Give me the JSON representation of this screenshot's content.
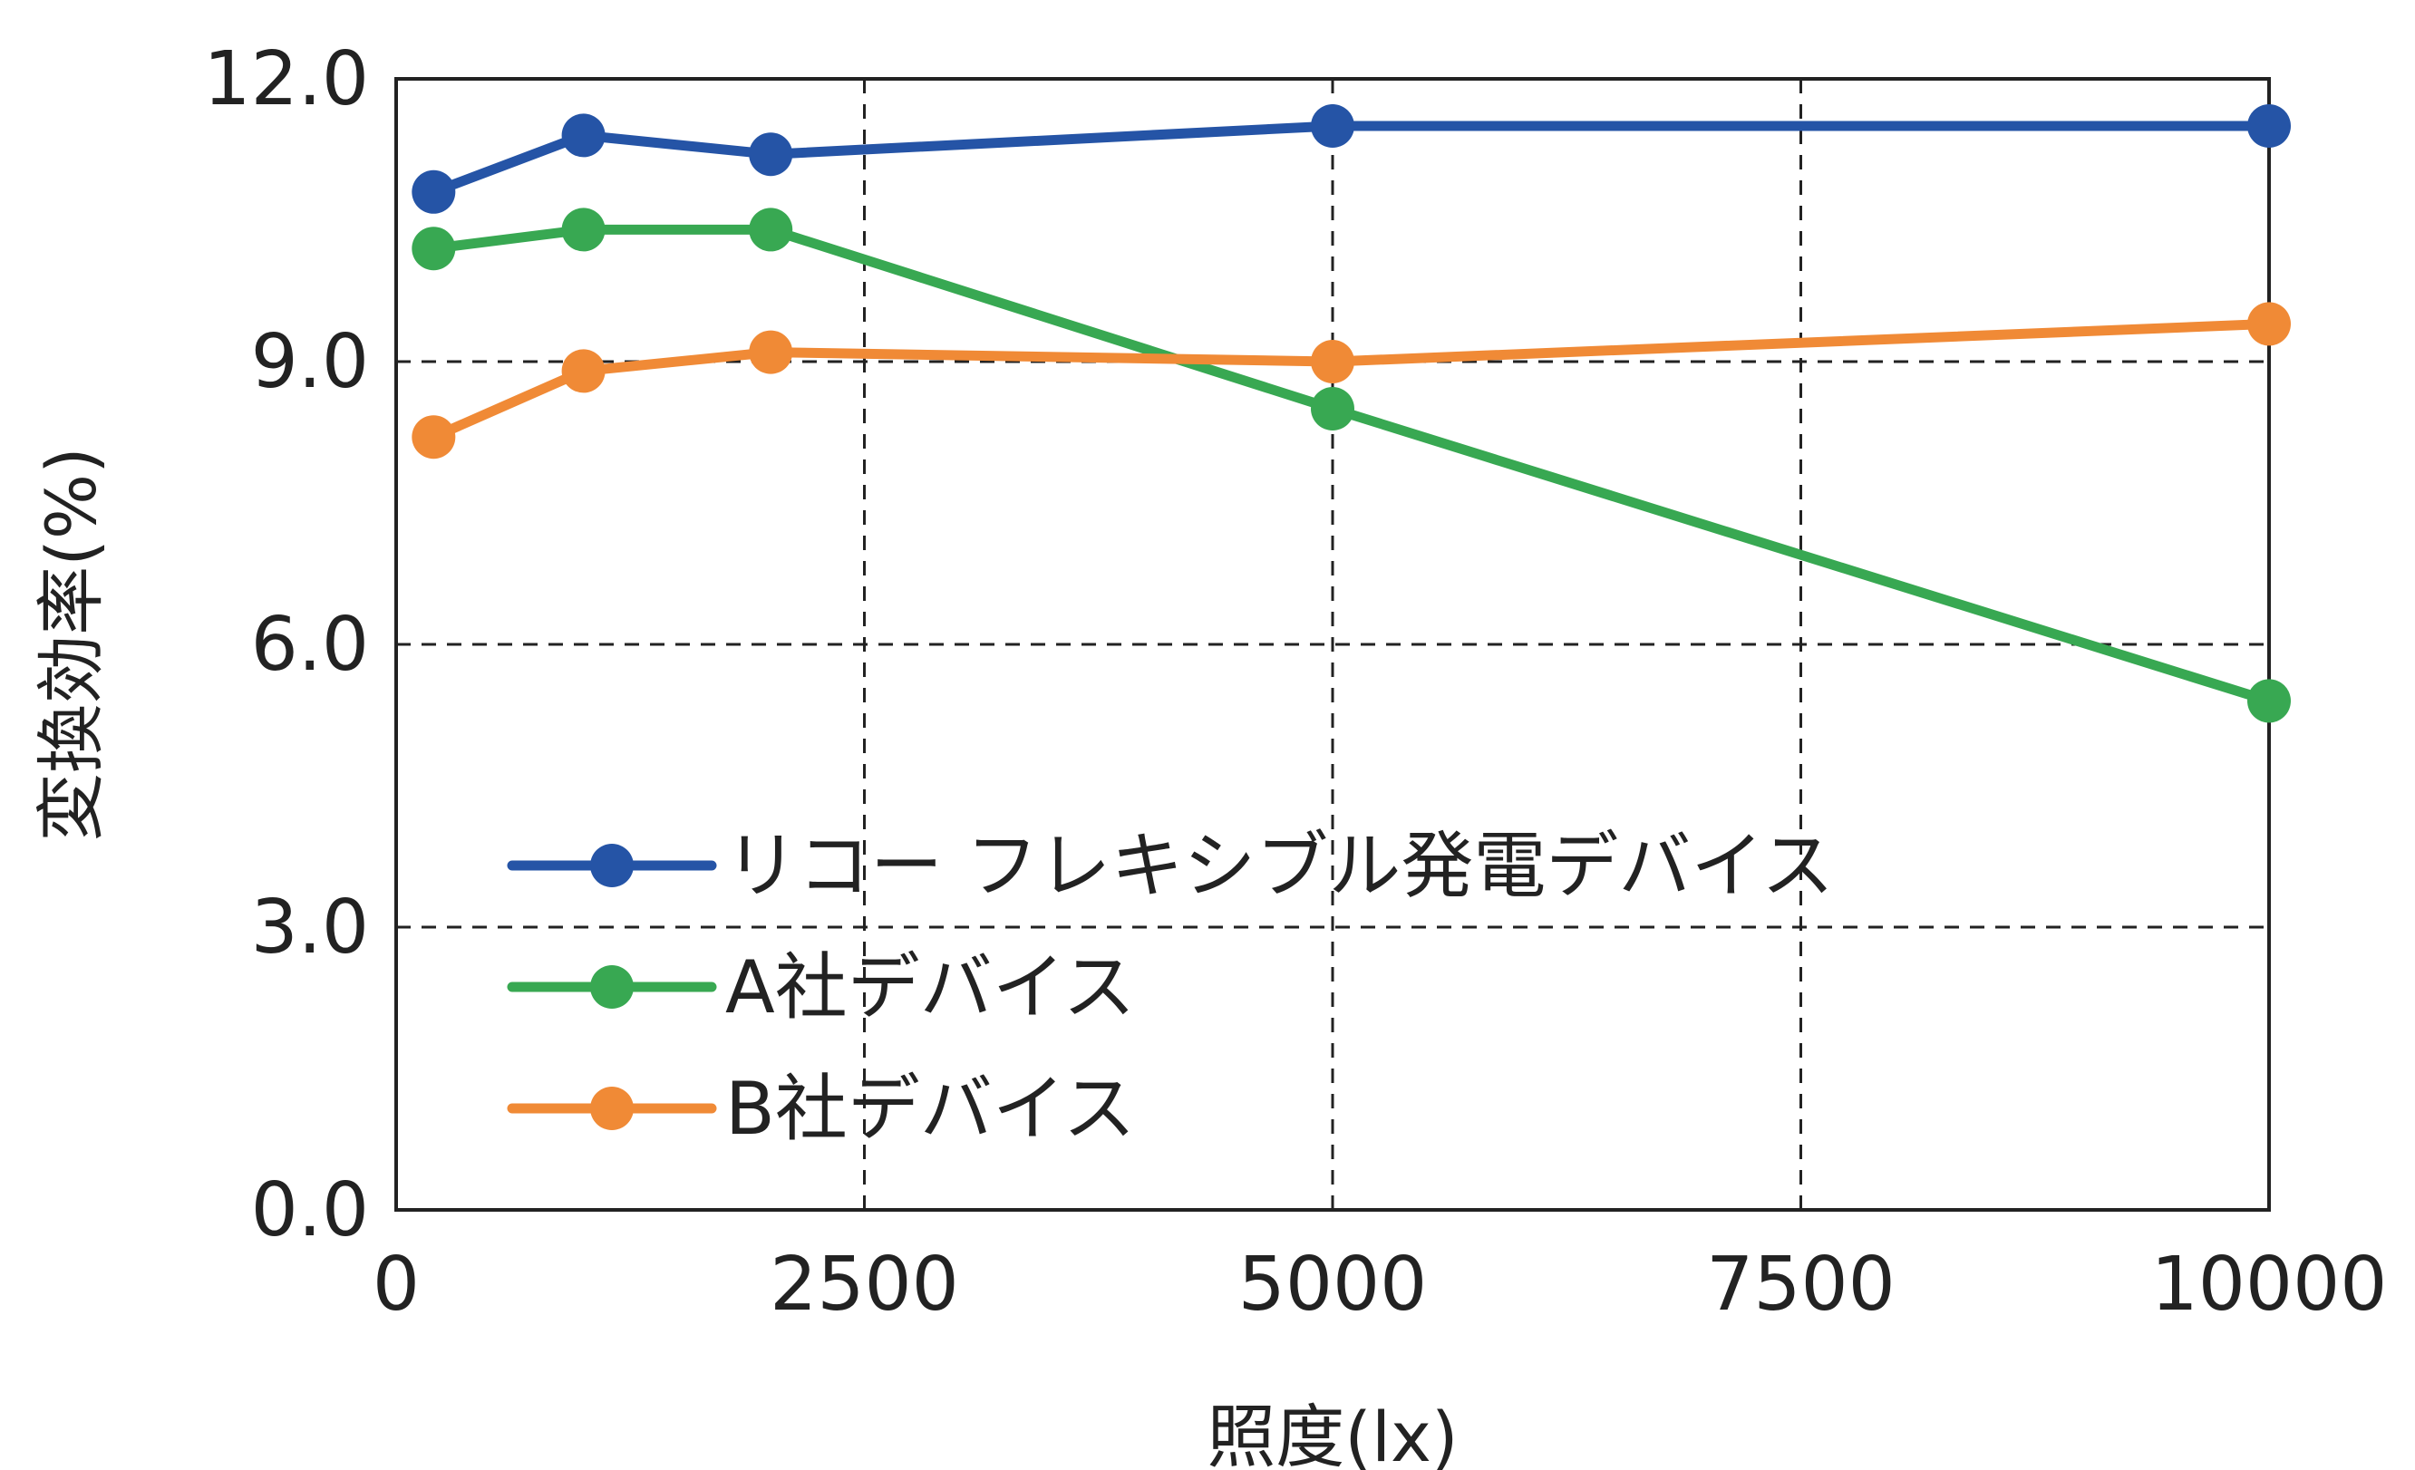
{
  "chart_data": {
    "type": "line",
    "xlabel": "照度(lx)",
    "ylabel": "変換効率(%)",
    "xlim": [
      0,
      10000
    ],
    "ylim": [
      0,
      12
    ],
    "x_ticks": [
      "0",
      "2500",
      "5000",
      "7500",
      "10000"
    ],
    "y_ticks": [
      "0.0",
      "3.0",
      "6.0",
      "9.0",
      "12.0"
    ],
    "grid": true,
    "legend_position": "bottom-left",
    "series": [
      {
        "name": "リコー フレキシブル発電デバイス",
        "color": "#2554a6",
        "x": [
          200,
          1000,
          2000,
          5000,
          10000
        ],
        "y": [
          10.8,
          11.4,
          11.2,
          11.5,
          11.5
        ]
      },
      {
        "name": "A社デバイス",
        "color": "#38a852",
        "x": [
          200,
          1000,
          2000,
          5000,
          10000
        ],
        "y": [
          10.2,
          10.4,
          10.4,
          8.5,
          5.4
        ]
      },
      {
        "name": "B社デバイス",
        "color": "#f08a36",
        "x": [
          200,
          1000,
          2000,
          5000,
          10000
        ],
        "y": [
          8.2,
          8.9,
          9.1,
          9.0,
          9.4
        ]
      }
    ]
  }
}
